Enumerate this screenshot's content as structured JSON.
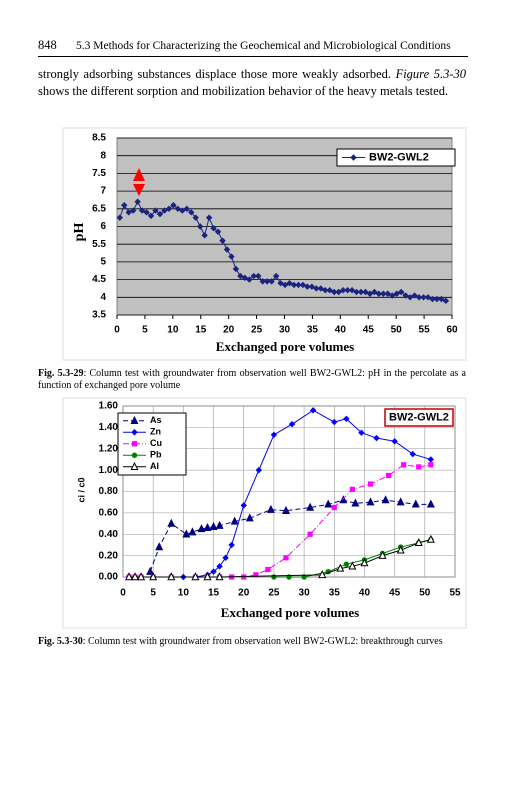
{
  "header": {
    "page_number": "848",
    "title": "5.3 Methods for Characterizing the Geochemical and Microbiological Conditions"
  },
  "paragraph": {
    "before": "strongly adsorbing substances displace those more weakly adsorbed.",
    "reference": "Figure 5.3-30",
    "after": "shows the different sorption and mobilization behavior of the heavy metals tested."
  },
  "captions": [
    {
      "label": "Fig. 5.3-29",
      "text": ": Column test with groundwater from observation well BW2-GWL2: pH in the percolate as a function of exchanged pore volume"
    },
    {
      "label": "Fig. 5.3-30",
      "text": ": Column test with groundwater from observation well BW2-GWL2: breakthrough curves"
    }
  ],
  "chart_data": [
    {
      "type": "line",
      "x_label": "Exchanged pore volumes",
      "y_label": "pH",
      "xlim": [
        0,
        60
      ],
      "xticks": [
        0,
        5,
        10,
        15,
        20,
        25,
        30,
        35,
        40,
        45,
        50,
        55,
        60
      ],
      "ylim": [
        3.5,
        8.5
      ],
      "yticks": [
        3.5,
        4,
        4.5,
        5,
        5.5,
        6,
        6.5,
        7,
        7.5,
        8,
        8.5
      ],
      "grid": true,
      "background": "#c0c0c0",
      "legend": "upper-right",
      "series": [
        {
          "name": "BW2-GWL2",
          "color": "#1a237e",
          "marker": "diamond",
          "linestyle": "solid",
          "x": [
            0.5,
            1.3,
            2.1,
            2.9,
            3.7,
            4.5,
            5.3,
            6.1,
            6.9,
            7.7,
            8.5,
            9.3,
            10.1,
            10.9,
            11.7,
            12.5,
            13.3,
            14.1,
            14.9,
            15.7,
            16.5,
            17.3,
            18.1,
            18.9,
            19.7,
            20.5,
            21.3,
            22.1,
            22.9,
            23.7,
            24.5,
            25.3,
            26.1,
            26.9,
            27.7,
            28.5,
            29.3,
            30.1,
            30.9,
            31.7,
            32.5,
            33.3,
            34.1,
            34.9,
            35.7,
            36.5,
            37.3,
            38.1,
            38.9,
            39.7,
            40.5,
            41.3,
            42.1,
            42.9,
            43.7,
            44.5,
            45.3,
            46.1,
            46.9,
            47.7,
            48.5,
            49.3,
            50.1,
            50.9,
            51.7,
            52.5,
            53.3,
            54.1,
            54.9,
            55.7,
            56.5,
            57.3,
            58.1,
            58.9
          ],
          "values": [
            6.25,
            6.6,
            6.4,
            6.45,
            6.7,
            6.45,
            6.4,
            6.3,
            6.45,
            6.35,
            6.45,
            6.5,
            6.6,
            6.5,
            6.45,
            6.5,
            6.4,
            6.25,
            6.0,
            5.75,
            6.25,
            5.95,
            5.85,
            5.6,
            5.35,
            5.15,
            4.8,
            4.6,
            4.55,
            4.5,
            4.6,
            4.6,
            4.45,
            4.45,
            4.45,
            4.6,
            4.4,
            4.35,
            4.4,
            4.35,
            4.35,
            4.35,
            4.3,
            4.3,
            4.25,
            4.25,
            4.2,
            4.2,
            4.15,
            4.15,
            4.2,
            4.2,
            4.2,
            4.15,
            4.15,
            4.15,
            4.1,
            4.15,
            4.1,
            4.1,
            4.1,
            4.05,
            4.1,
            4.15,
            4.05,
            4.0,
            4.05,
            4.0,
            4.0,
            4.0,
            3.95,
            3.95,
            3.95,
            3.9
          ]
        }
      ]
    },
    {
      "type": "line",
      "x_label": "Exchanged pore volumes",
      "y_label": "ci / c0",
      "annotation": "BW2-GWL2",
      "xlim": [
        0,
        55
      ],
      "xticks": [
        0,
        5,
        10,
        15,
        20,
        25,
        30,
        35,
        40,
        45,
        50,
        55
      ],
      "ylim": [
        0,
        1.6
      ],
      "yticks": [
        {
          "value": 0,
          "label": "0.00"
        },
        {
          "value": 0.2,
          "label": "0.20"
        },
        {
          "value": 0.4,
          "label": "0.40"
        },
        {
          "value": 0.6,
          "label": "0.60"
        },
        {
          "value": 0.8,
          "label": "0.80"
        },
        {
          "value": 1,
          "label": "1.00"
        },
        {
          "value": 1.2,
          "label": "1.20"
        },
        {
          "value": 1.4,
          "label": "1.40"
        },
        {
          "value": 1.6,
          "label": "1.60"
        }
      ],
      "grid": true,
      "background": "#ffffff",
      "legend": "upper-left",
      "series": [
        {
          "name": "As",
          "color": "#000080",
          "marker": "triangle",
          "linestyle": "dashed",
          "x": [
            4.5,
            6,
            8,
            10.5,
            11.5,
            13,
            14,
            15,
            16,
            18.5,
            21,
            24.5,
            27,
            31,
            34,
            36.5,
            38.5,
            41,
            43.5,
            46,
            48.5,
            51
          ],
          "values": [
            0.05,
            0.28,
            0.5,
            0.4,
            0.42,
            0.45,
            0.46,
            0.47,
            0.48,
            0.52,
            0.55,
            0.63,
            0.62,
            0.65,
            0.68,
            0.72,
            0.69,
            0.7,
            0.72,
            0.7,
            0.68,
            0.68
          ]
        },
        {
          "name": "Zn",
          "color": "#0000ff",
          "marker": "diamond",
          "linestyle": "solid",
          "x": [
            1,
            2,
            3,
            5,
            8,
            10,
            12,
            14,
            15,
            16,
            17,
            18,
            20,
            22.5,
            25,
            28,
            31.5,
            35,
            37,
            39.5,
            42,
            45,
            48,
            51
          ],
          "values": [
            0,
            0,
            0,
            0,
            0,
            0,
            0,
            0.02,
            0.05,
            0.1,
            0.18,
            0.3,
            0.67,
            1.0,
            1.33,
            1.43,
            1.56,
            1.45,
            1.48,
            1.35,
            1.3,
            1.27,
            1.15,
            1.1
          ]
        },
        {
          "name": "Cu",
          "color": "#ff00ff",
          "marker": "square",
          "linestyle": "dashdot",
          "x": [
            1,
            2,
            3,
            5,
            8,
            12,
            14,
            16,
            18,
            20,
            22,
            24,
            27,
            31,
            35,
            38,
            41,
            44,
            46.5,
            49,
            51
          ],
          "values": [
            0,
            0,
            0,
            0,
            0,
            0,
            0,
            0,
            0,
            0,
            0.02,
            0.07,
            0.18,
            0.4,
            0.65,
            0.82,
            0.87,
            0.95,
            1.05,
            1.03,
            1.05
          ]
        },
        {
          "name": "Pb",
          "color": "#008000",
          "marker": "circle",
          "linestyle": "solid",
          "x": [
            25,
            27.5,
            30,
            34,
            37,
            40,
            43,
            46,
            49,
            51
          ],
          "values": [
            0,
            0,
            0,
            0.05,
            0.12,
            0.16,
            0.22,
            0.28,
            0.32,
            0.35
          ]
        },
        {
          "name": "Al",
          "color": "#000000",
          "marker": "open-triangle",
          "linestyle": "solid",
          "x": [
            1,
            2,
            3,
            5,
            8,
            12,
            14,
            16,
            33,
            36,
            38,
            40,
            43,
            46,
            49,
            51
          ],
          "values": [
            0,
            0,
            0,
            0,
            0,
            0,
            0,
            0,
            0.02,
            0.08,
            0.1,
            0.13,
            0.2,
            0.25,
            0.32,
            0.35
          ]
        }
      ]
    }
  ]
}
